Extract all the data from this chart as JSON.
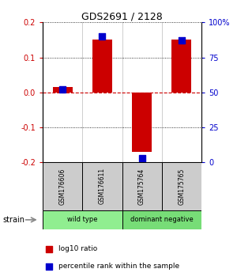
{
  "title": "GDS2691 / 2128",
  "samples": [
    "GSM176606",
    "GSM176611",
    "GSM175764",
    "GSM175765"
  ],
  "log10_ratio": [
    0.015,
    0.15,
    -0.17,
    0.15
  ],
  "percentile_rank": [
    52,
    90,
    3,
    87
  ],
  "groups": [
    {
      "label": "wild type",
      "samples": [
        0,
        1
      ],
      "color": "#90ee90"
    },
    {
      "label": "dominant negative",
      "samples": [
        2,
        3
      ],
      "color": "#77dd77"
    }
  ],
  "group_label": "strain",
  "ylim": [
    -0.2,
    0.2
  ],
  "yticks_left": [
    -0.2,
    -0.1,
    0.0,
    0.1,
    0.2
  ],
  "yticks_right": [
    0,
    25,
    50,
    75,
    100
  ],
  "red_color": "#cc0000",
  "blue_color": "#0000cc",
  "bar_width": 0.5,
  "dot_size": 28,
  "zero_line_color": "#cc0000",
  "sample_box_color": "#cccccc",
  "legend_log10": "log10 ratio",
  "legend_pct": "percentile rank within the sample"
}
